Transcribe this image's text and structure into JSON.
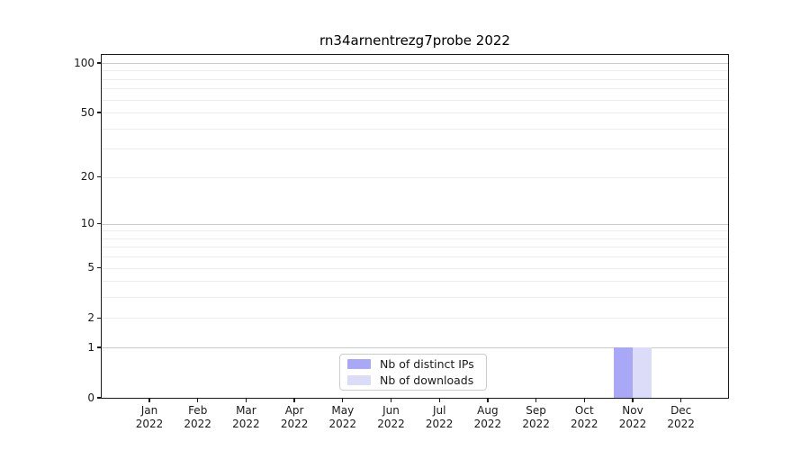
{
  "title": "rn34arnentrezg7probe 2022",
  "axes": {
    "x_months": [
      "Jan",
      "Feb",
      "Mar",
      "Apr",
      "May",
      "Jun",
      "Jul",
      "Aug",
      "Sep",
      "Oct",
      "Nov",
      "Dec"
    ],
    "year": "2022",
    "y_tick_labels": [
      "0",
      "1",
      "2",
      "5",
      "10",
      "20",
      "50",
      "100"
    ]
  },
  "legend": {
    "items": [
      {
        "label": "Nb of distinct IPs",
        "color": "#a8a8f6"
      },
      {
        "label": "Nb of downloads",
        "color": "#dcdcf9"
      }
    ]
  },
  "colors": {
    "bar_distinct_ips": "#a8a8f6",
    "bar_downloads": "#dcdcf9",
    "grid_major": "#c9c9c9",
    "grid_minor": "#ececec",
    "axis": "#1a1a1a",
    "legend_border": "#cccccc"
  },
  "chart_data": {
    "type": "bar",
    "title": "rn34arnentrezg7probe 2022",
    "categories": [
      "Jan 2022",
      "Feb 2022",
      "Mar 2022",
      "Apr 2022",
      "May 2022",
      "Jun 2022",
      "Jul 2022",
      "Aug 2022",
      "Sep 2022",
      "Oct 2022",
      "Nov 2022",
      "Dec 2022"
    ],
    "series": [
      {
        "name": "Nb of distinct IPs",
        "color": "#a8a8f6",
        "values": [
          0,
          0,
          0,
          0,
          0,
          0,
          0,
          0,
          0,
          0,
          1,
          0
        ]
      },
      {
        "name": "Nb of downloads",
        "color": "#dcdcf9",
        "values": [
          0,
          0,
          0,
          0,
          0,
          0,
          0,
          0,
          0,
          0,
          1,
          0
        ]
      }
    ],
    "xlabel": "",
    "ylabel": "",
    "yscale": "log1p",
    "ylim": [
      0,
      113
    ],
    "yticks": [
      0,
      1,
      2,
      5,
      10,
      20,
      50,
      100
    ],
    "grid": {
      "on": true,
      "major_values": [
        1,
        10,
        100
      ],
      "minor_values": [
        2,
        3,
        4,
        5,
        6,
        7,
        8,
        9,
        20,
        30,
        40,
        50,
        60,
        70,
        80,
        90
      ]
    },
    "legend_position": "lower center"
  }
}
